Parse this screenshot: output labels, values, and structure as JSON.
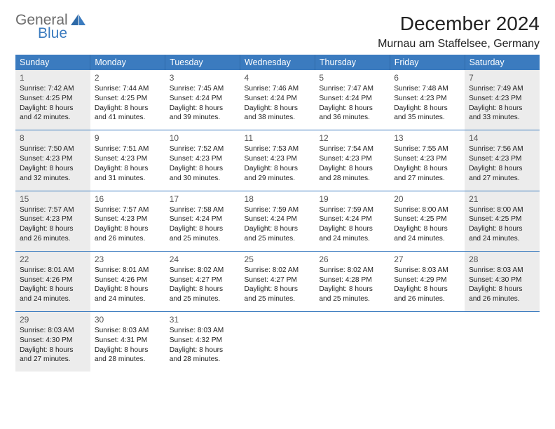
{
  "logo": {
    "top": "General",
    "bottom": "Blue"
  },
  "title": "December 2024",
  "location": "Murnau am Staffelsee, Germany",
  "colors": {
    "header_bg": "#3b7bbf",
    "header_text": "#ffffff",
    "row_border": "#3b7bbf",
    "shade_bg": "#ececec",
    "logo_top": "#6b6b6b",
    "logo_bottom": "#3b7bbf"
  },
  "fonts": {
    "title_size_pt": 21,
    "location_size_pt": 12,
    "dayhead_size_pt": 9.5,
    "cell_size_pt": 7.7
  },
  "day_headers": [
    "Sunday",
    "Monday",
    "Tuesday",
    "Wednesday",
    "Thursday",
    "Friday",
    "Saturday"
  ],
  "weeks": [
    [
      {
        "n": "1",
        "shade": true,
        "sunrise": "Sunrise: 7:42 AM",
        "sunset": "Sunset: 4:25 PM",
        "d1": "Daylight: 8 hours",
        "d2": "and 42 minutes."
      },
      {
        "n": "2",
        "shade": false,
        "sunrise": "Sunrise: 7:44 AM",
        "sunset": "Sunset: 4:25 PM",
        "d1": "Daylight: 8 hours",
        "d2": "and 41 minutes."
      },
      {
        "n": "3",
        "shade": false,
        "sunrise": "Sunrise: 7:45 AM",
        "sunset": "Sunset: 4:24 PM",
        "d1": "Daylight: 8 hours",
        "d2": "and 39 minutes."
      },
      {
        "n": "4",
        "shade": false,
        "sunrise": "Sunrise: 7:46 AM",
        "sunset": "Sunset: 4:24 PM",
        "d1": "Daylight: 8 hours",
        "d2": "and 38 minutes."
      },
      {
        "n": "5",
        "shade": false,
        "sunrise": "Sunrise: 7:47 AM",
        "sunset": "Sunset: 4:24 PM",
        "d1": "Daylight: 8 hours",
        "d2": "and 36 minutes."
      },
      {
        "n": "6",
        "shade": false,
        "sunrise": "Sunrise: 7:48 AM",
        "sunset": "Sunset: 4:23 PM",
        "d1": "Daylight: 8 hours",
        "d2": "and 35 minutes."
      },
      {
        "n": "7",
        "shade": true,
        "sunrise": "Sunrise: 7:49 AM",
        "sunset": "Sunset: 4:23 PM",
        "d1": "Daylight: 8 hours",
        "d2": "and 33 minutes."
      }
    ],
    [
      {
        "n": "8",
        "shade": true,
        "sunrise": "Sunrise: 7:50 AM",
        "sunset": "Sunset: 4:23 PM",
        "d1": "Daylight: 8 hours",
        "d2": "and 32 minutes."
      },
      {
        "n": "9",
        "shade": false,
        "sunrise": "Sunrise: 7:51 AM",
        "sunset": "Sunset: 4:23 PM",
        "d1": "Daylight: 8 hours",
        "d2": "and 31 minutes."
      },
      {
        "n": "10",
        "shade": false,
        "sunrise": "Sunrise: 7:52 AM",
        "sunset": "Sunset: 4:23 PM",
        "d1": "Daylight: 8 hours",
        "d2": "and 30 minutes."
      },
      {
        "n": "11",
        "shade": false,
        "sunrise": "Sunrise: 7:53 AM",
        "sunset": "Sunset: 4:23 PM",
        "d1": "Daylight: 8 hours",
        "d2": "and 29 minutes."
      },
      {
        "n": "12",
        "shade": false,
        "sunrise": "Sunrise: 7:54 AM",
        "sunset": "Sunset: 4:23 PM",
        "d1": "Daylight: 8 hours",
        "d2": "and 28 minutes."
      },
      {
        "n": "13",
        "shade": false,
        "sunrise": "Sunrise: 7:55 AM",
        "sunset": "Sunset: 4:23 PM",
        "d1": "Daylight: 8 hours",
        "d2": "and 27 minutes."
      },
      {
        "n": "14",
        "shade": true,
        "sunrise": "Sunrise: 7:56 AM",
        "sunset": "Sunset: 4:23 PM",
        "d1": "Daylight: 8 hours",
        "d2": "and 27 minutes."
      }
    ],
    [
      {
        "n": "15",
        "shade": true,
        "sunrise": "Sunrise: 7:57 AM",
        "sunset": "Sunset: 4:23 PM",
        "d1": "Daylight: 8 hours",
        "d2": "and 26 minutes."
      },
      {
        "n": "16",
        "shade": false,
        "sunrise": "Sunrise: 7:57 AM",
        "sunset": "Sunset: 4:23 PM",
        "d1": "Daylight: 8 hours",
        "d2": "and 26 minutes."
      },
      {
        "n": "17",
        "shade": false,
        "sunrise": "Sunrise: 7:58 AM",
        "sunset": "Sunset: 4:24 PM",
        "d1": "Daylight: 8 hours",
        "d2": "and 25 minutes."
      },
      {
        "n": "18",
        "shade": false,
        "sunrise": "Sunrise: 7:59 AM",
        "sunset": "Sunset: 4:24 PM",
        "d1": "Daylight: 8 hours",
        "d2": "and 25 minutes."
      },
      {
        "n": "19",
        "shade": false,
        "sunrise": "Sunrise: 7:59 AM",
        "sunset": "Sunset: 4:24 PM",
        "d1": "Daylight: 8 hours",
        "d2": "and 24 minutes."
      },
      {
        "n": "20",
        "shade": false,
        "sunrise": "Sunrise: 8:00 AM",
        "sunset": "Sunset: 4:25 PM",
        "d1": "Daylight: 8 hours",
        "d2": "and 24 minutes."
      },
      {
        "n": "21",
        "shade": true,
        "sunrise": "Sunrise: 8:00 AM",
        "sunset": "Sunset: 4:25 PM",
        "d1": "Daylight: 8 hours",
        "d2": "and 24 minutes."
      }
    ],
    [
      {
        "n": "22",
        "shade": true,
        "sunrise": "Sunrise: 8:01 AM",
        "sunset": "Sunset: 4:26 PM",
        "d1": "Daylight: 8 hours",
        "d2": "and 24 minutes."
      },
      {
        "n": "23",
        "shade": false,
        "sunrise": "Sunrise: 8:01 AM",
        "sunset": "Sunset: 4:26 PM",
        "d1": "Daylight: 8 hours",
        "d2": "and 24 minutes."
      },
      {
        "n": "24",
        "shade": false,
        "sunrise": "Sunrise: 8:02 AM",
        "sunset": "Sunset: 4:27 PM",
        "d1": "Daylight: 8 hours",
        "d2": "and 25 minutes."
      },
      {
        "n": "25",
        "shade": false,
        "sunrise": "Sunrise: 8:02 AM",
        "sunset": "Sunset: 4:27 PM",
        "d1": "Daylight: 8 hours",
        "d2": "and 25 minutes."
      },
      {
        "n": "26",
        "shade": false,
        "sunrise": "Sunrise: 8:02 AM",
        "sunset": "Sunset: 4:28 PM",
        "d1": "Daylight: 8 hours",
        "d2": "and 25 minutes."
      },
      {
        "n": "27",
        "shade": false,
        "sunrise": "Sunrise: 8:03 AM",
        "sunset": "Sunset: 4:29 PM",
        "d1": "Daylight: 8 hours",
        "d2": "and 26 minutes."
      },
      {
        "n": "28",
        "shade": true,
        "sunrise": "Sunrise: 8:03 AM",
        "sunset": "Sunset: 4:30 PM",
        "d1": "Daylight: 8 hours",
        "d2": "and 26 minutes."
      }
    ],
    [
      {
        "n": "29",
        "shade": true,
        "sunrise": "Sunrise: 8:03 AM",
        "sunset": "Sunset: 4:30 PM",
        "d1": "Daylight: 8 hours",
        "d2": "and 27 minutes."
      },
      {
        "n": "30",
        "shade": false,
        "sunrise": "Sunrise: 8:03 AM",
        "sunset": "Sunset: 4:31 PM",
        "d1": "Daylight: 8 hours",
        "d2": "and 28 minutes."
      },
      {
        "n": "31",
        "shade": false,
        "sunrise": "Sunrise: 8:03 AM",
        "sunset": "Sunset: 4:32 PM",
        "d1": "Daylight: 8 hours",
        "d2": "and 28 minutes."
      },
      {
        "empty": true
      },
      {
        "empty": true
      },
      {
        "empty": true
      },
      {
        "empty": true
      }
    ]
  ]
}
